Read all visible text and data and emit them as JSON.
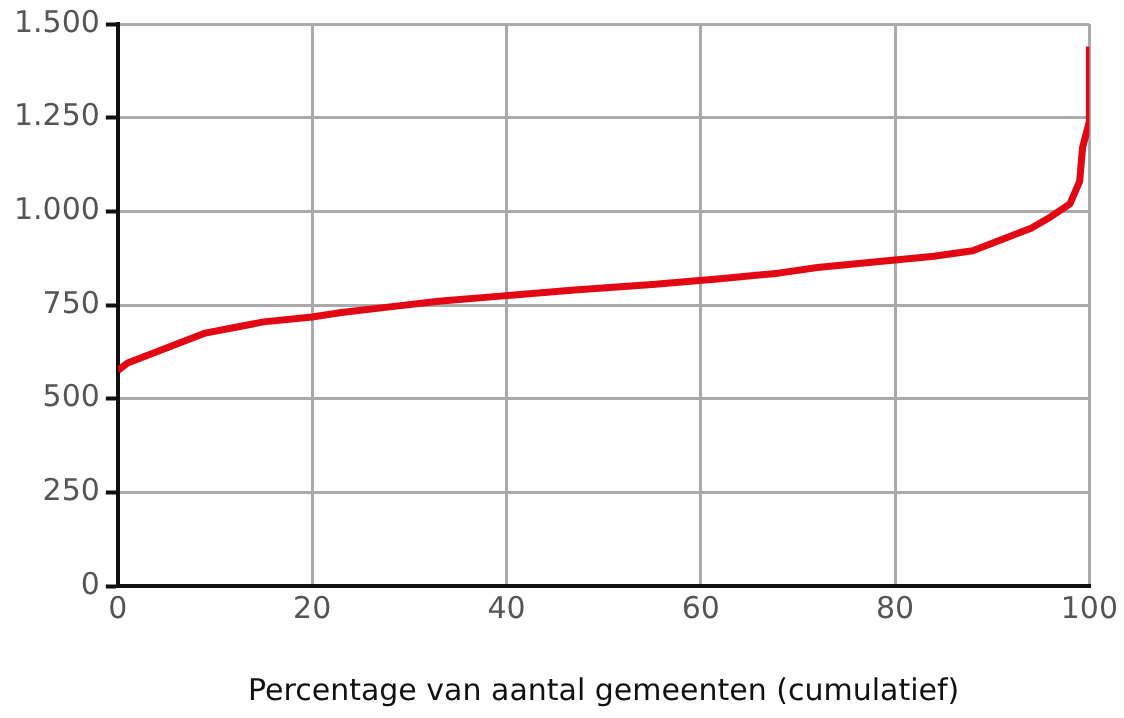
{
  "chart_data": {
    "type": "line",
    "xlabel": "Percentage van aantal gemeenten (cumulatief)",
    "series": [
      {
        "color": "#e30613",
        "x": [
          0,
          1,
          3,
          5,
          7,
          9,
          12,
          15,
          20,
          23,
          28,
          33,
          40,
          47,
          55,
          62,
          68,
          72,
          80,
          84,
          88,
          90,
          92,
          94,
          96,
          98,
          99,
          99.3,
          100,
          100
        ],
        "values": [
          575,
          595,
          615,
          635,
          655,
          675,
          690,
          705,
          718,
          730,
          745,
          760,
          775,
          790,
          805,
          820,
          835,
          850,
          870,
          880,
          895,
          915,
          935,
          955,
          985,
          1020,
          1080,
          1170,
          1240,
          1440
        ]
      }
    ],
    "xlim": [
      0,
      100
    ],
    "xticks": [
      0,
      20,
      40,
      60,
      80,
      100
    ],
    "ylim": [
      0,
      1500
    ],
    "yticks": [
      0,
      250,
      500,
      750,
      {
        "value": 1000,
        "label": "1.000"
      },
      {
        "value": 1250,
        "label": "1.250"
      },
      {
        "value": 1500,
        "label": "1.500"
      }
    ],
    "grid": true,
    "legend": false,
    "marker": "none",
    "line_style": "solid"
  }
}
